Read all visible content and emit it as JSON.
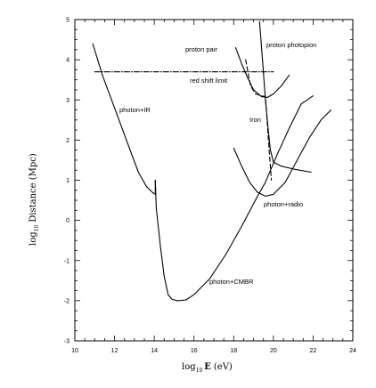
{
  "chart_data": {
    "type": "line",
    "title": "",
    "xlabel_main": "log",
    "xlabel_sub": "10",
    "xlabel_bold": "E",
    "xlabel_unit": "(eV)",
    "ylabel_main": "log",
    "ylabel_sub": "10",
    "ylabel_rest": "Distance (Mpc)",
    "xlim": [
      10,
      24
    ],
    "ylim": [
      -3,
      5
    ],
    "x_ticks": [
      "10",
      "12",
      "14",
      "16",
      "18",
      "20",
      "22",
      "24"
    ],
    "y_ticks": [
      "-3",
      "-2",
      "-1",
      "0",
      "1",
      "2",
      "3",
      "4",
      "5"
    ],
    "annotations": {
      "proton_pair": "proton pair",
      "proton_photopion": "proton photopion",
      "red_shift_limit": "red shift limit",
      "photon_ir": "photon+IR",
      "iron": "Iron",
      "photon_radio": "photon+radio",
      "photon_cmbr": "photon+CMBR"
    },
    "series": [
      {
        "key": "photon_ir",
        "style": "solid",
        "points": [
          [
            10.9,
            4.4
          ],
          [
            11.4,
            3.6
          ],
          [
            12.0,
            2.8
          ],
          [
            12.6,
            2.0
          ],
          [
            13.2,
            1.2
          ],
          [
            13.6,
            0.85
          ],
          [
            13.9,
            0.7
          ],
          [
            14.05,
            0.65
          ],
          [
            14.05,
            1.0
          ]
        ]
      },
      {
        "key": "photon_cmbr",
        "style": "solid",
        "points": [
          [
            14.05,
            1.0
          ],
          [
            14.1,
            0.3
          ],
          [
            14.3,
            -0.6
          ],
          [
            14.5,
            -1.4
          ],
          [
            14.7,
            -1.85
          ],
          [
            14.9,
            -1.97
          ],
          [
            15.2,
            -2.0
          ],
          [
            15.6,
            -1.98
          ],
          [
            16.0,
            -1.85
          ],
          [
            16.8,
            -1.45
          ],
          [
            17.6,
            -0.85
          ],
          [
            18.4,
            -0.15
          ],
          [
            19.2,
            0.6
          ],
          [
            19.6,
            0.95
          ],
          [
            20.2,
            1.65
          ],
          [
            20.8,
            2.3
          ],
          [
            21.4,
            2.9
          ],
          [
            22.0,
            3.1
          ]
        ]
      },
      {
        "key": "photon_radio",
        "style": "solid",
        "points": [
          [
            18.0,
            1.8
          ],
          [
            18.4,
            1.35
          ],
          [
            18.8,
            0.95
          ],
          [
            19.2,
            0.7
          ],
          [
            19.6,
            0.6
          ],
          [
            20.0,
            0.65
          ],
          [
            20.6,
            0.95
          ],
          [
            21.2,
            1.5
          ],
          [
            21.8,
            2.05
          ],
          [
            22.4,
            2.5
          ],
          [
            22.9,
            2.75
          ]
        ]
      },
      {
        "key": "proton_pair",
        "style": "solid",
        "points": [
          [
            18.1,
            4.3
          ],
          [
            18.4,
            3.9
          ],
          [
            18.7,
            3.55
          ],
          [
            19.0,
            3.25
          ],
          [
            19.4,
            3.08
          ],
          [
            19.7,
            3.06
          ],
          [
            20.0,
            3.15
          ],
          [
            20.4,
            3.35
          ],
          [
            20.8,
            3.62
          ]
        ]
      },
      {
        "key": "proton_photopion",
        "style": "solid",
        "points": [
          [
            19.3,
            4.95
          ],
          [
            19.45,
            4.0
          ],
          [
            19.6,
            3.0
          ],
          [
            19.75,
            2.2
          ],
          [
            19.85,
            1.75
          ],
          [
            20.0,
            1.45
          ],
          [
            20.4,
            1.35
          ],
          [
            21.0,
            1.28
          ],
          [
            21.9,
            1.2
          ]
        ]
      },
      {
        "key": "iron",
        "style": "dashed",
        "points": [
          [
            18.6,
            4.0
          ],
          [
            18.85,
            3.35
          ],
          [
            19.1,
            3.15
          ],
          [
            19.4,
            3.1
          ],
          [
            19.6,
            3.08
          ],
          [
            19.75,
            2.0
          ],
          [
            19.9,
            1.0
          ]
        ]
      },
      {
        "key": "red_shift_limit",
        "style": "dashdot",
        "points": [
          [
            11.0,
            3.7
          ],
          [
            20.0,
            3.7
          ]
        ]
      }
    ]
  }
}
